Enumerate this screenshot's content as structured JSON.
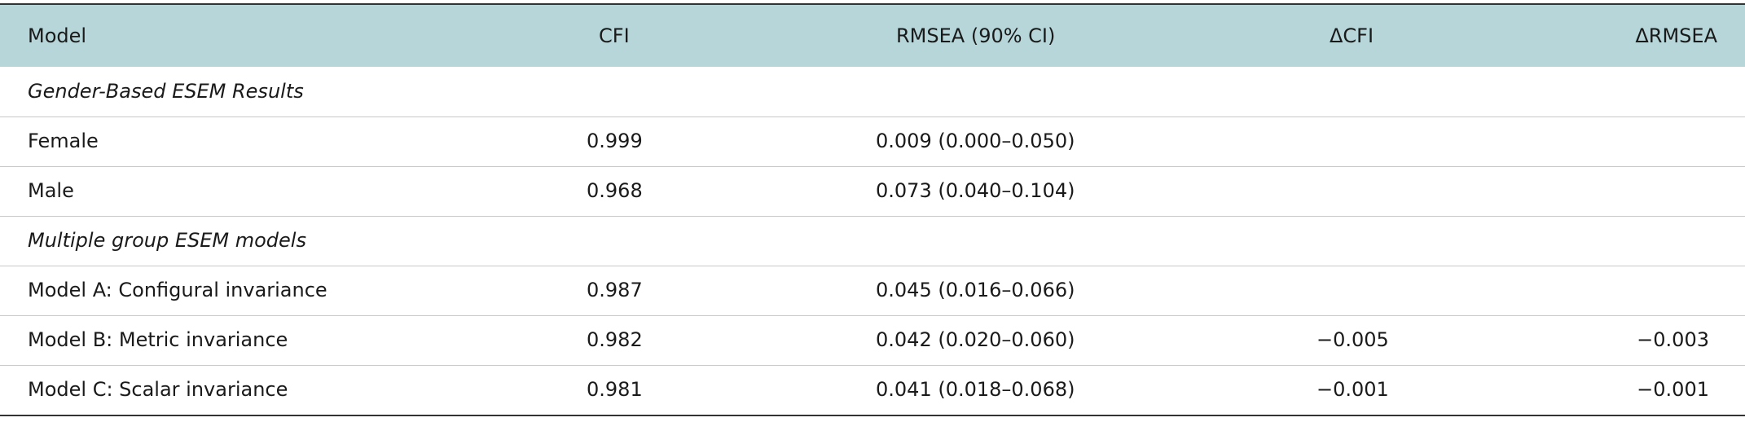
{
  "table": {
    "header": [
      "Model",
      "CFI",
      "RMSEA (90% CI)",
      "ΔCFI",
      "ΔRMSEA"
    ],
    "rows": [
      [
        "Gender-Based ESEM Results"
      ],
      [
        "Female",
        "0.999",
        "0.009 (0.000–0.050)"
      ],
      [
        "Male",
        "0.968",
        "0.073 (0.040–0.104)"
      ],
      [
        "Multiple group ESEM models"
      ],
      [
        "Model A: Configural invariance",
        "0.987",
        "0.045 (0.016–0.066)"
      ],
      [
        "Model B: Metric invariance",
        "0.982",
        "0.042 (0.020–0.060)",
        "−0.005",
        "−0.003"
      ],
      [
        "Model C: Scalar invariance",
        "0.981",
        "0.041 (0.018–0.068)",
        "−0.001",
        "−0.001"
      ]
    ]
  }
}
